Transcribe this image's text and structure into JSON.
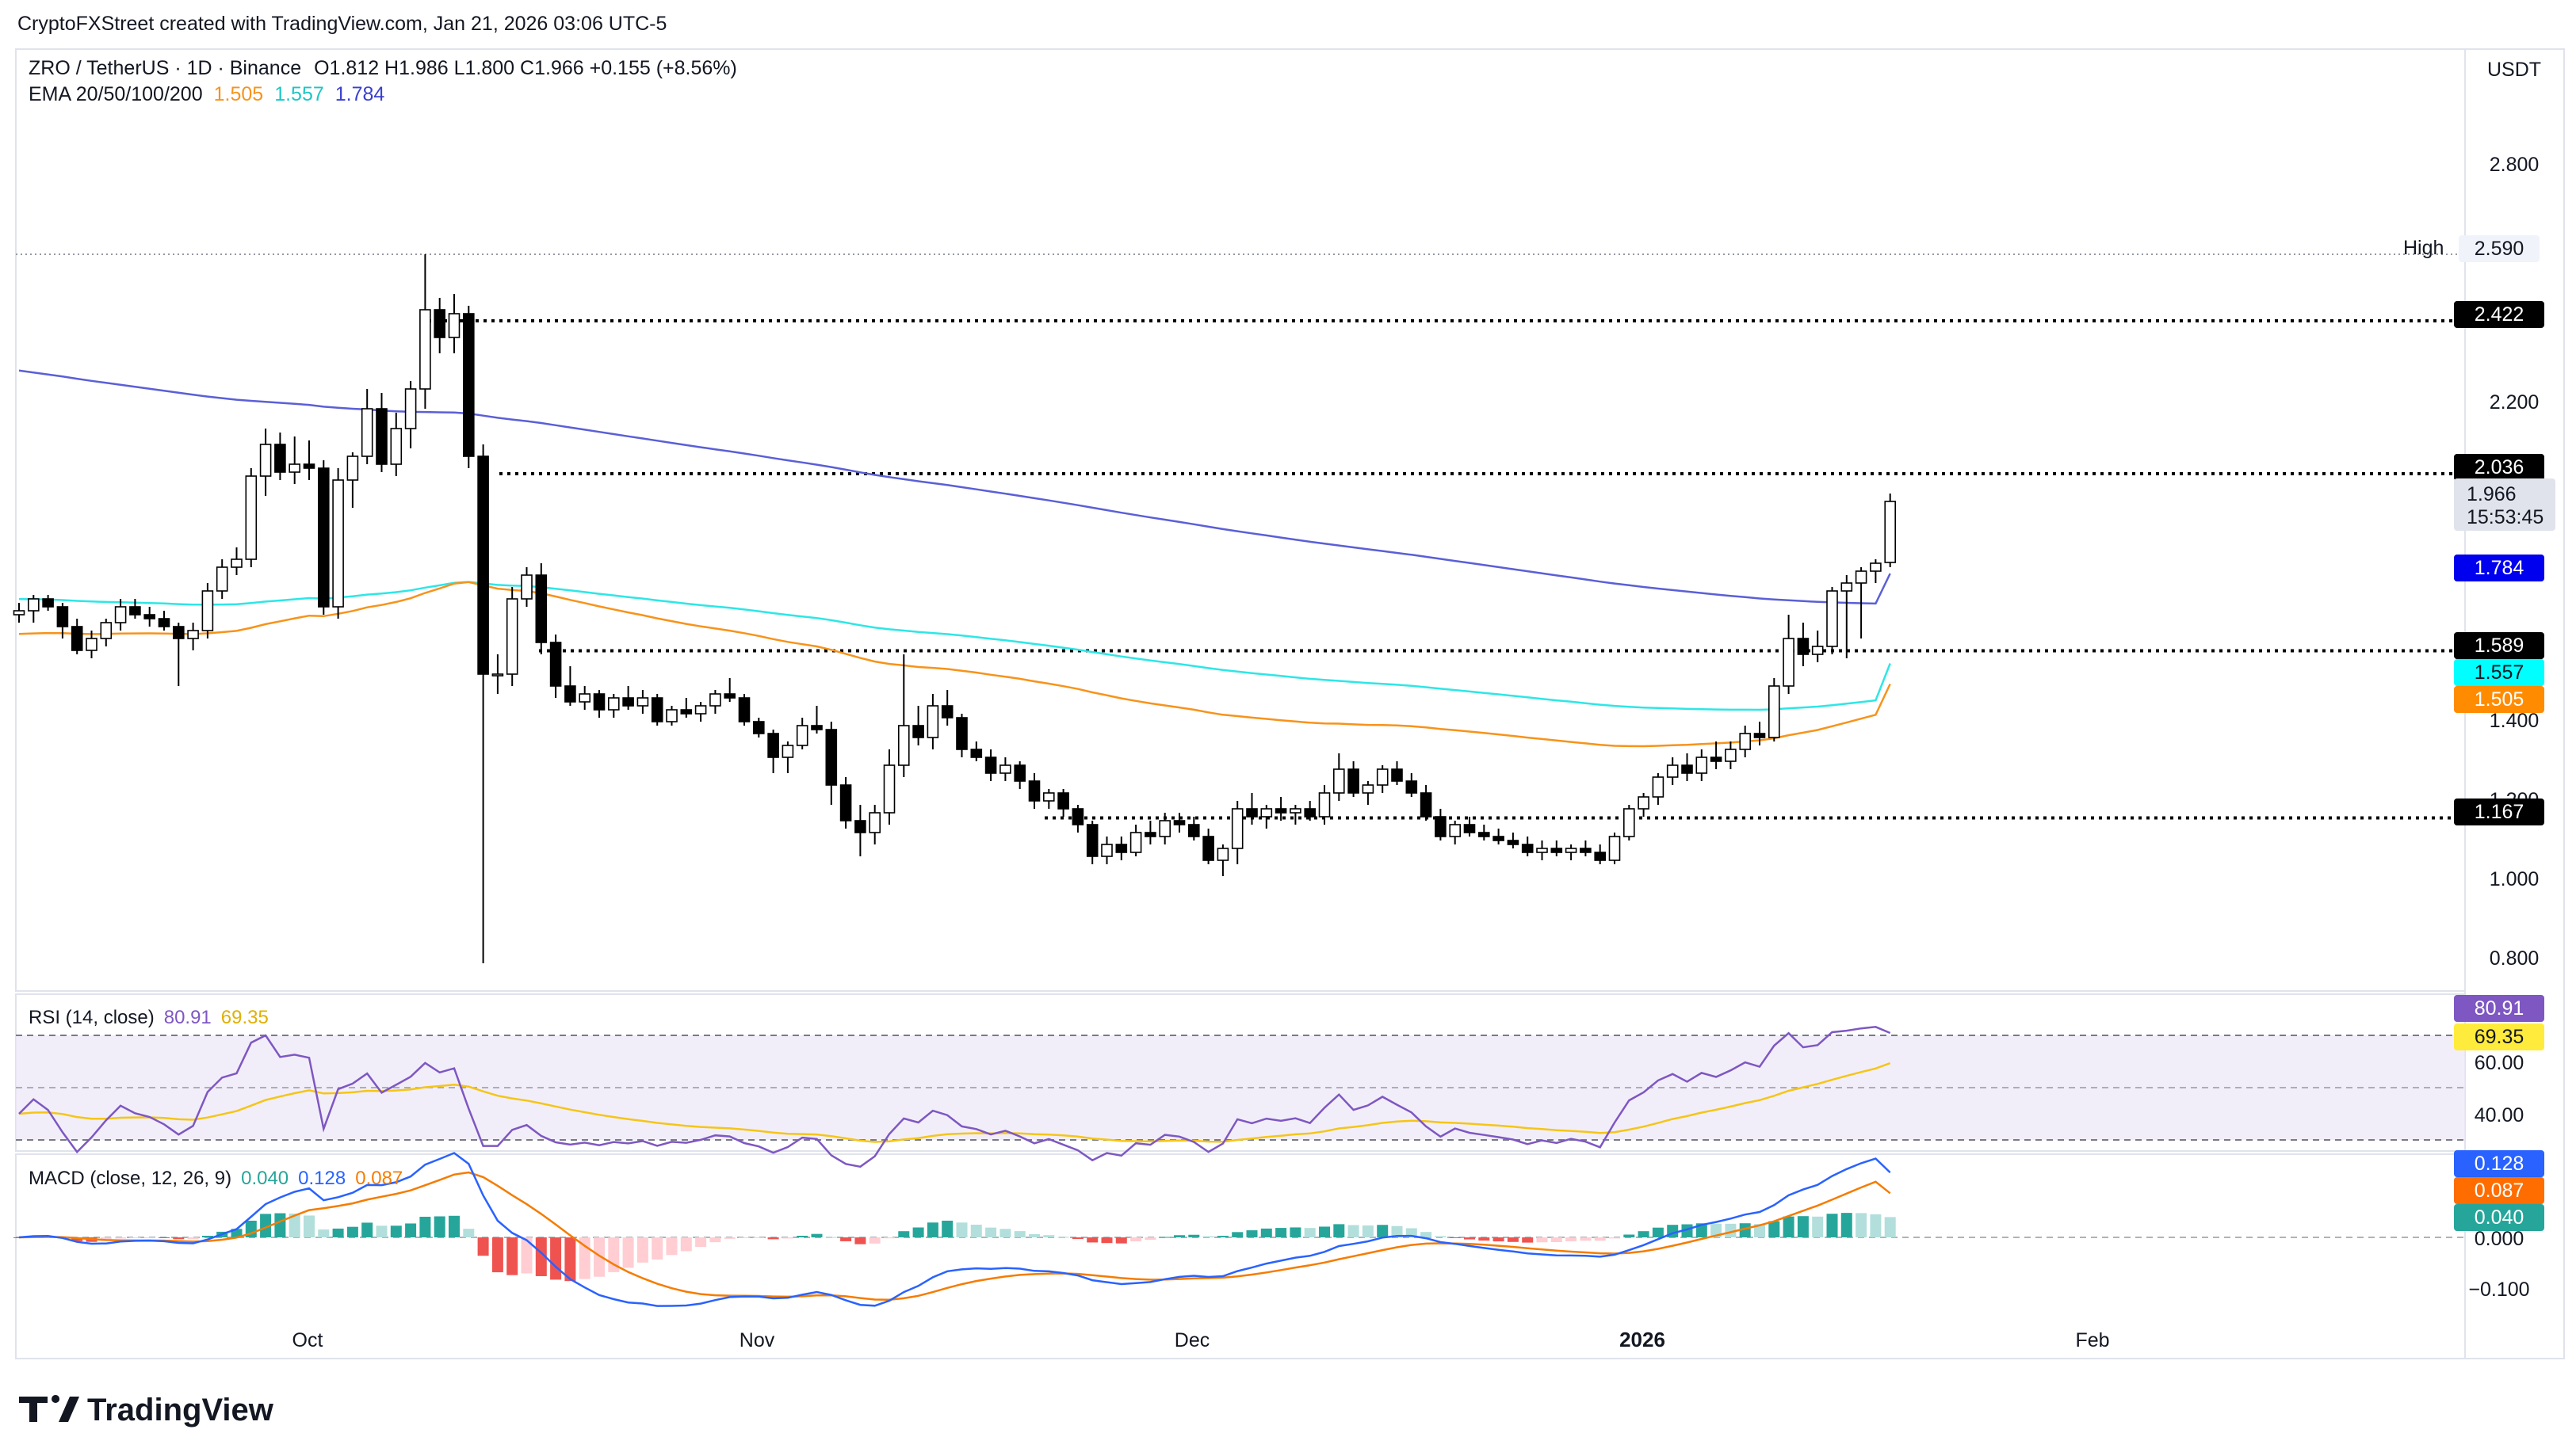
{
  "header": {
    "caption": "CryptoFXStreet created with TradingView.com, Jan 21, 2026 03:06 UTC-5"
  },
  "legend": {
    "symbol": "ZRO / TetherUS · 1D · Binance",
    "ohlc": "O1.812  H1.986  L1.800  C1.966  +0.155 (+8.56%)",
    "ema_label": "EMA 20/50/100/200",
    "ema_values": [
      "1.505",
      "1.557",
      "1.784"
    ]
  },
  "currency": "USDT",
  "colors": {
    "up": "#ffffff",
    "down": "#000000",
    "ema50": "#f7931a",
    "ema100": "#2ee6e6",
    "ema200": "#5b5fd6",
    "rsi": "#7e57c2",
    "rsi_ma": "#f5c518",
    "macd": "#2962ff",
    "signal": "#f57c00",
    "hist_up_strong": "#26a69a",
    "hist_up_weak": "#b2dfdb",
    "hist_down_strong": "#ef5350",
    "hist_down_weak": "#ffcdd2"
  },
  "price_axis": {
    "ticks": [
      "2.800",
      "2.200",
      "1.400",
      "1.200",
      "1.000",
      "0.800"
    ]
  },
  "levels": [
    {
      "label": "High",
      "value": "2.590"
    },
    {
      "value": "2.422"
    },
    {
      "value": "2.036"
    },
    {
      "value": "1.589"
    },
    {
      "value": "1.167"
    }
  ],
  "tags": {
    "last_price": "1.966",
    "countdown": "15:53:45",
    "ema200": "1.784",
    "ema100": "1.557",
    "ema50": "1.505"
  },
  "rsi": {
    "label": "RSI (14, close)",
    "value": "80.91",
    "ma": "69.35",
    "ticks": [
      "60.00",
      "40.00"
    ]
  },
  "macd": {
    "label": "MACD (close, 12, 26, 9)",
    "hist": "0.040",
    "macd": "0.128",
    "signal": "0.087",
    "ticks": [
      "0.000",
      "−0.100"
    ]
  },
  "time_axis": {
    "labels": [
      "Oct",
      "Nov",
      "Dec",
      "2026",
      "Feb"
    ]
  },
  "brand": "TradingView",
  "chart_data": {
    "type": "candlestick",
    "title": "ZRO / TetherUS · 1D · Binance",
    "ylim": [
      0.7,
      2.95
    ],
    "candles": [
      [
        1.68,
        1.71,
        1.66,
        1.69
      ],
      [
        1.69,
        1.73,
        1.66,
        1.72
      ],
      [
        1.72,
        1.73,
        1.69,
        1.7
      ],
      [
        1.7,
        1.71,
        1.62,
        1.65
      ],
      [
        1.65,
        1.67,
        1.58,
        1.59
      ],
      [
        1.59,
        1.64,
        1.57,
        1.62
      ],
      [
        1.62,
        1.67,
        1.6,
        1.66
      ],
      [
        1.66,
        1.72,
        1.64,
        1.7
      ],
      [
        1.7,
        1.72,
        1.67,
        1.68
      ],
      [
        1.68,
        1.7,
        1.65,
        1.67
      ],
      [
        1.67,
        1.69,
        1.64,
        1.65
      ],
      [
        1.65,
        1.66,
        1.5,
        1.62
      ],
      [
        1.62,
        1.66,
        1.59,
        1.64
      ],
      [
        1.64,
        1.76,
        1.62,
        1.74
      ],
      [
        1.74,
        1.82,
        1.72,
        1.8
      ],
      [
        1.8,
        1.85,
        1.78,
        1.82
      ],
      [
        1.82,
        2.05,
        1.8,
        2.03
      ],
      [
        2.03,
        2.15,
        1.98,
        2.11
      ],
      [
        2.11,
        2.14,
        2.02,
        2.04
      ],
      [
        2.04,
        2.13,
        2.01,
        2.06
      ],
      [
        2.06,
        2.12,
        2.02,
        2.05
      ],
      [
        2.05,
        2.07,
        1.68,
        1.7
      ],
      [
        1.7,
        2.05,
        1.67,
        2.02
      ],
      [
        2.02,
        2.09,
        1.95,
        2.08
      ],
      [
        2.08,
        2.25,
        2.06,
        2.2
      ],
      [
        2.2,
        2.24,
        2.04,
        2.06
      ],
      [
        2.06,
        2.19,
        2.03,
        2.15
      ],
      [
        2.15,
        2.27,
        2.1,
        2.25
      ],
      [
        2.25,
        2.59,
        2.2,
        2.45
      ],
      [
        2.45,
        2.48,
        2.34,
        2.38
      ],
      [
        2.38,
        2.49,
        2.34,
        2.44
      ],
      [
        2.44,
        2.46,
        2.05,
        2.08
      ],
      [
        2.08,
        2.11,
        0.8,
        1.53
      ],
      [
        1.53,
        1.58,
        1.48,
        1.53
      ],
      [
        1.53,
        1.75,
        1.5,
        1.72
      ],
      [
        1.72,
        1.8,
        1.7,
        1.78
      ],
      [
        1.78,
        1.81,
        1.58,
        1.61
      ],
      [
        1.61,
        1.63,
        1.47,
        1.5
      ],
      [
        1.5,
        1.55,
        1.45,
        1.46
      ],
      [
        1.46,
        1.5,
        1.44,
        1.48
      ],
      [
        1.48,
        1.49,
        1.42,
        1.44
      ],
      [
        1.44,
        1.48,
        1.42,
        1.47
      ],
      [
        1.47,
        1.5,
        1.44,
        1.45
      ],
      [
        1.45,
        1.49,
        1.43,
        1.47
      ],
      [
        1.47,
        1.48,
        1.4,
        1.41
      ],
      [
        1.41,
        1.45,
        1.4,
        1.44
      ],
      [
        1.44,
        1.47,
        1.42,
        1.43
      ],
      [
        1.43,
        1.46,
        1.41,
        1.45
      ],
      [
        1.45,
        1.49,
        1.43,
        1.48
      ],
      [
        1.48,
        1.52,
        1.46,
        1.47
      ],
      [
        1.47,
        1.48,
        1.4,
        1.41
      ],
      [
        1.41,
        1.42,
        1.37,
        1.38
      ],
      [
        1.38,
        1.39,
        1.28,
        1.32
      ],
      [
        1.32,
        1.36,
        1.28,
        1.35
      ],
      [
        1.35,
        1.42,
        1.34,
        1.4
      ],
      [
        1.4,
        1.45,
        1.38,
        1.39
      ],
      [
        1.39,
        1.41,
        1.2,
        1.25
      ],
      [
        1.25,
        1.27,
        1.14,
        1.16
      ],
      [
        1.16,
        1.2,
        1.07,
        1.13
      ],
      [
        1.13,
        1.2,
        1.1,
        1.18
      ],
      [
        1.18,
        1.34,
        1.15,
        1.3
      ],
      [
        1.3,
        1.58,
        1.27,
        1.4
      ],
      [
        1.4,
        1.45,
        1.35,
        1.37
      ],
      [
        1.37,
        1.48,
        1.34,
        1.45
      ],
      [
        1.45,
        1.49,
        1.4,
        1.42
      ],
      [
        1.42,
        1.43,
        1.32,
        1.34
      ],
      [
        1.34,
        1.36,
        1.31,
        1.32
      ],
      [
        1.32,
        1.34,
        1.26,
        1.28
      ],
      [
        1.28,
        1.32,
        1.26,
        1.3
      ],
      [
        1.3,
        1.31,
        1.24,
        1.26
      ],
      [
        1.26,
        1.28,
        1.19,
        1.21
      ],
      [
        1.21,
        1.24,
        1.19,
        1.23
      ],
      [
        1.23,
        1.24,
        1.17,
        1.19
      ],
      [
        1.19,
        1.2,
        1.13,
        1.15
      ],
      [
        1.15,
        1.16,
        1.05,
        1.07
      ],
      [
        1.07,
        1.12,
        1.05,
        1.1
      ],
      [
        1.1,
        1.12,
        1.06,
        1.08
      ],
      [
        1.08,
        1.15,
        1.07,
        1.13
      ],
      [
        1.13,
        1.16,
        1.1,
        1.12
      ],
      [
        1.12,
        1.18,
        1.1,
        1.16
      ],
      [
        1.16,
        1.18,
        1.13,
        1.15
      ],
      [
        1.15,
        1.17,
        1.11,
        1.12
      ],
      [
        1.12,
        1.14,
        1.05,
        1.06
      ],
      [
        1.06,
        1.1,
        1.02,
        1.09
      ],
      [
        1.09,
        1.21,
        1.05,
        1.19
      ],
      [
        1.19,
        1.23,
        1.15,
        1.17
      ],
      [
        1.17,
        1.2,
        1.14,
        1.19
      ],
      [
        1.19,
        1.22,
        1.16,
        1.18
      ],
      [
        1.18,
        1.2,
        1.15,
        1.19
      ],
      [
        1.19,
        1.21,
        1.16,
        1.17
      ],
      [
        1.17,
        1.25,
        1.15,
        1.23
      ],
      [
        1.23,
        1.33,
        1.21,
        1.29
      ],
      [
        1.29,
        1.31,
        1.22,
        1.23
      ],
      [
        1.23,
        1.26,
        1.2,
        1.25
      ],
      [
        1.25,
        1.3,
        1.23,
        1.29
      ],
      [
        1.29,
        1.31,
        1.25,
        1.26
      ],
      [
        1.26,
        1.28,
        1.22,
        1.23
      ],
      [
        1.23,
        1.25,
        1.16,
        1.17
      ],
      [
        1.17,
        1.19,
        1.11,
        1.12
      ],
      [
        1.12,
        1.16,
        1.1,
        1.15
      ],
      [
        1.15,
        1.17,
        1.12,
        1.13
      ],
      [
        1.13,
        1.15,
        1.11,
        1.12
      ],
      [
        1.12,
        1.14,
        1.1,
        1.11
      ],
      [
        1.11,
        1.13,
        1.09,
        1.1
      ],
      [
        1.1,
        1.12,
        1.07,
        1.08
      ],
      [
        1.08,
        1.11,
        1.06,
        1.09
      ],
      [
        1.09,
        1.11,
        1.07,
        1.08
      ],
      [
        1.08,
        1.1,
        1.06,
        1.09
      ],
      [
        1.09,
        1.11,
        1.07,
        1.08
      ],
      [
        1.08,
        1.1,
        1.05,
        1.06
      ],
      [
        1.06,
        1.13,
        1.05,
        1.12
      ],
      [
        1.12,
        1.2,
        1.11,
        1.19
      ],
      [
        1.19,
        1.23,
        1.17,
        1.22
      ],
      [
        1.22,
        1.28,
        1.2,
        1.27
      ],
      [
        1.27,
        1.32,
        1.25,
        1.3
      ],
      [
        1.3,
        1.33,
        1.26,
        1.28
      ],
      [
        1.28,
        1.34,
        1.26,
        1.32
      ],
      [
        1.32,
        1.36,
        1.29,
        1.31
      ],
      [
        1.31,
        1.36,
        1.29,
        1.34
      ],
      [
        1.34,
        1.4,
        1.32,
        1.38
      ],
      [
        1.38,
        1.41,
        1.35,
        1.37
      ],
      [
        1.37,
        1.52,
        1.36,
        1.5
      ],
      [
        1.5,
        1.68,
        1.48,
        1.62
      ],
      [
        1.62,
        1.66,
        1.55,
        1.58
      ],
      [
        1.58,
        1.64,
        1.56,
        1.6
      ],
      [
        1.6,
        1.75,
        1.58,
        1.74
      ],
      [
        1.74,
        1.78,
        1.57,
        1.76
      ],
      [
        1.76,
        1.8,
        1.62,
        1.79
      ],
      [
        1.79,
        1.82,
        1.76,
        1.81
      ],
      [
        1.812,
        1.986,
        1.8,
        1.966
      ]
    ],
    "ema50_start": 1.63,
    "ema50_end": 1.505,
    "ema100_start": 1.72,
    "ema100_end": 1.557,
    "ema200_start": 2.3,
    "ema200_end": 1.784,
    "rsi_ylim": [
      20,
      90
    ],
    "macd_ylim": [
      -0.16,
      0.19
    ]
  }
}
